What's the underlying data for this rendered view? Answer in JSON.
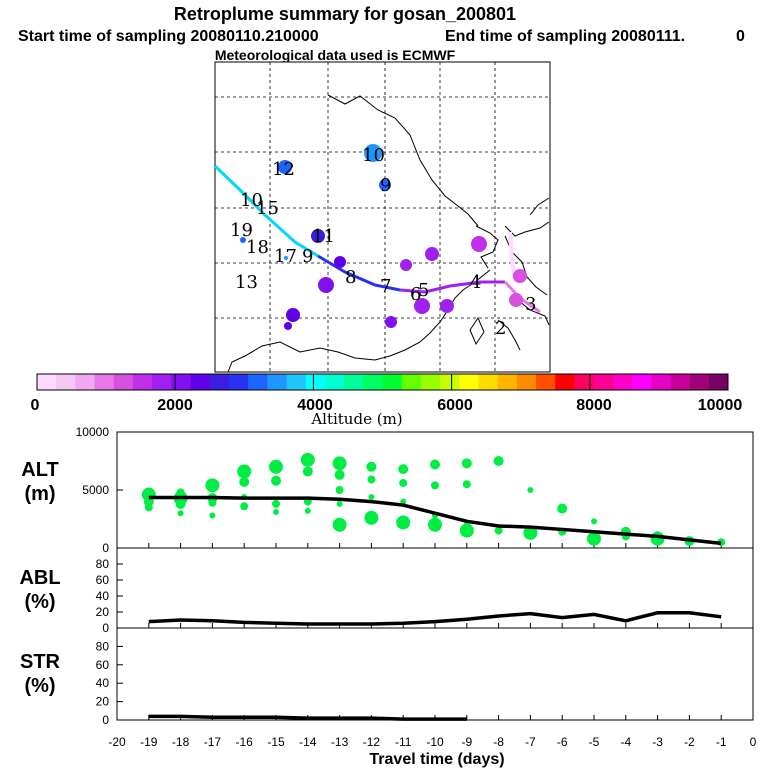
{
  "header": {
    "title": "Retroplume summary for gosan_200801",
    "start_label": "Start time of sampling 20080110.210000",
    "end_label": "End time of sampling 20080111.",
    "end_value": "0",
    "met_label": "Meteorological data used is ECMWF"
  },
  "colorbar": {
    "ticks": [
      "0",
      "2000",
      "4000",
      "6000",
      "8000",
      "10000"
    ],
    "label": "Altitude (m)",
    "colors": [
      "#ffd9ff",
      "#f5c8f5",
      "#f0a8f0",
      "#e878e8",
      "#d850e0",
      "#c030e8",
      "#a020f0",
      "#8010f0",
      "#6000e8",
      "#3c1ee0",
      "#2832f0",
      "#1e64ff",
      "#1e96ff",
      "#1ec8ff",
      "#00ffff",
      "#00ffd2",
      "#00ff96",
      "#00ff64",
      "#00ff32",
      "#64ff00",
      "#96ff00",
      "#c8ff00",
      "#ffff00",
      "#ffdc00",
      "#ffb400",
      "#ff8c00",
      "#ff5000",
      "#ff0000",
      "#ff0064",
      "#ff0096",
      "#ff00c8",
      "#ff00ff",
      "#e600c8",
      "#c8009b",
      "#a00078",
      "#780064"
    ]
  },
  "map_labels": [
    {
      "t": "10",
      "color": "#1e64ff"
    },
    {
      "t": "12",
      "color": "#1e64ff"
    },
    {
      "t": "9",
      "color": "#1e64ff"
    },
    {
      "t": "10",
      "color": "#000000"
    },
    {
      "t": "15",
      "color": "#000000"
    },
    {
      "t": "19",
      "color": "#000000"
    },
    {
      "t": "18",
      "color": "#000000"
    },
    {
      "t": "11",
      "color": "#000000"
    },
    {
      "t": "17",
      "color": "#000000"
    },
    {
      "t": "13",
      "color": "#000000"
    },
    {
      "t": "9",
      "color": "#000000"
    },
    {
      "t": "8",
      "color": "#000000"
    },
    {
      "t": "7",
      "color": "#000000"
    },
    {
      "t": "6",
      "color": "#000000"
    },
    {
      "t": "5",
      "color": "#000000"
    },
    {
      "t": "4",
      "color": "#000000"
    },
    {
      "t": "3",
      "color": "#000000"
    },
    {
      "t": "2",
      "color": "#000000"
    }
  ],
  "chart_data": [
    {
      "type": "line",
      "panel": "ALT",
      "ylabel": "ALT",
      "yunit": "(m)",
      "ylim": [
        0,
        10000
      ],
      "yticks": [
        0,
        5000,
        10000
      ],
      "x": [
        -19,
        -18,
        -17,
        -16,
        -15,
        -14,
        -13,
        -12,
        -11,
        -10,
        -9,
        -8,
        -7,
        -6,
        -5,
        -4,
        -3,
        -2,
        -1
      ],
      "series": [
        {
          "name": "mean altitude",
          "values": [
            4350,
            4350,
            4350,
            4300,
            4300,
            4300,
            4200,
            4000,
            3700,
            3000,
            2300,
            1900,
            1800,
            1600,
            1400,
            1200,
            1000,
            700,
            400
          ]
        }
      ],
      "scatter": {
        "name": "plume clusters",
        "color": "#00ee44",
        "points": [
          [
            -19,
            4600
          ],
          [
            -19,
            4000
          ],
          [
            -19,
            3500
          ],
          [
            -19,
            4900
          ],
          [
            -18,
            4300
          ],
          [
            -18,
            3800
          ],
          [
            -18,
            4800
          ],
          [
            -18,
            3000
          ],
          [
            -17,
            5400
          ],
          [
            -17,
            4300
          ],
          [
            -17,
            3900
          ],
          [
            -17,
            2800
          ],
          [
            -16,
            6600
          ],
          [
            -16,
            5700
          ],
          [
            -16,
            3600
          ],
          [
            -16,
            4400
          ],
          [
            -15,
            7000
          ],
          [
            -15,
            5800
          ],
          [
            -15,
            3800
          ],
          [
            -15,
            3100
          ],
          [
            -14,
            7600
          ],
          [
            -14,
            6600
          ],
          [
            -14,
            4000
          ],
          [
            -14,
            3200
          ],
          [
            -13,
            7300
          ],
          [
            -13,
            6300
          ],
          [
            -13,
            5000
          ],
          [
            -13,
            3800
          ],
          [
            -13,
            2000
          ],
          [
            -12,
            7000
          ],
          [
            -12,
            5900
          ],
          [
            -12,
            4400
          ],
          [
            -12,
            2600
          ],
          [
            -11,
            6800
          ],
          [
            -11,
            5600
          ],
          [
            -11,
            4000
          ],
          [
            -11,
            2200
          ],
          [
            -10,
            7200
          ],
          [
            -10,
            5400
          ],
          [
            -10,
            2800
          ],
          [
            -10,
            2000
          ],
          [
            -9,
            7300
          ],
          [
            -9,
            5500
          ],
          [
            -9,
            2000
          ],
          [
            -9,
            1500
          ],
          [
            -8,
            7500
          ],
          [
            -8,
            1500
          ],
          [
            -7,
            5000
          ],
          [
            -7,
            1300
          ],
          [
            -6,
            3400
          ],
          [
            -6,
            1400
          ],
          [
            -5,
            2300
          ],
          [
            -5,
            800
          ],
          [
            -4,
            1400
          ],
          [
            -4,
            1000
          ],
          [
            -3,
            1200
          ],
          [
            -3,
            800
          ],
          [
            -2,
            600
          ],
          [
            -1,
            500
          ]
        ]
      }
    },
    {
      "type": "line",
      "panel": "ABL",
      "ylabel": "ABL",
      "yunit": "(%)",
      "ylim": [
        0,
        100
      ],
      "yticks": [
        0,
        20,
        40,
        60,
        80
      ],
      "x": [
        -19,
        -18,
        -17,
        -16,
        -15,
        -14,
        -13,
        -12,
        -11,
        -10,
        -9,
        -8,
        -7,
        -6,
        -5,
        -4,
        -3,
        -2,
        -1
      ],
      "series": [
        {
          "name": "ABL fraction",
          "values": [
            8,
            10,
            9,
            7,
            6,
            5,
            5,
            5,
            6,
            8,
            11,
            15,
            18,
            13,
            17,
            9,
            19,
            19,
            14
          ]
        }
      ]
    },
    {
      "type": "line",
      "panel": "STR",
      "ylabel": "STR",
      "yunit": "(%)",
      "ylim": [
        0,
        100
      ],
      "yticks": [
        0,
        20,
        40,
        60,
        80
      ],
      "x": [
        -19,
        -18,
        -17,
        -16,
        -15,
        -14,
        -13,
        -12,
        -11,
        -10,
        -9
      ],
      "series": [
        {
          "name": "stratospheric fraction",
          "values": [
            4,
            4,
            3,
            3,
            3,
            2,
            2,
            2,
            1,
            1,
            1
          ]
        }
      ],
      "xlabel": "Travel time (days)",
      "xlim": [
        -20,
        0
      ],
      "xticks": [
        "-20",
        "-19",
        "-18",
        "-17",
        "-16",
        "-15",
        "-14",
        "-13",
        "-12",
        "-11",
        "-10",
        "-9",
        "-8",
        "-7",
        "-6",
        "-5",
        "-4",
        "-3",
        "-2",
        "-1",
        "0"
      ]
    }
  ]
}
